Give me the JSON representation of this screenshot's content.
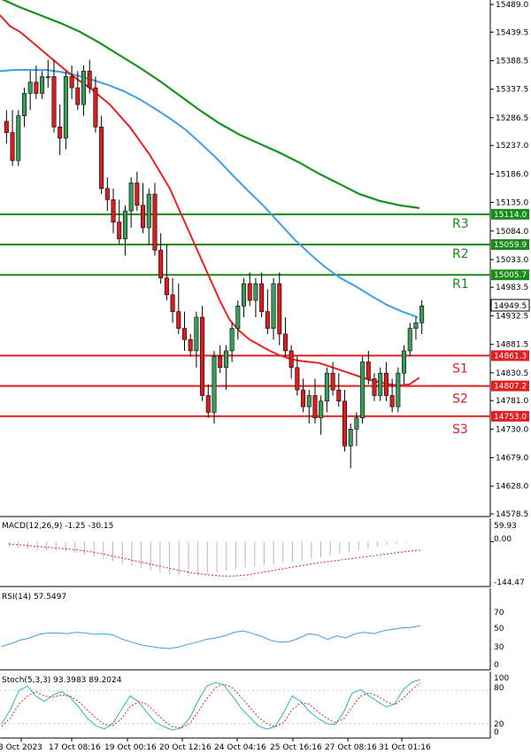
{
  "colors": {
    "bull": "#3a9c5a",
    "bear": "#d81e1e",
    "ma_fast": "#e8231f",
    "ma_mid": "#3aa0e8",
    "ma_slow": "#17921b",
    "resistance": "#1a8a1a",
    "support": "#e02020",
    "macd_hist": "#b8b8b8",
    "macd_signal": "#e02020",
    "rsi": "#3aa0e8",
    "stoch_k": "#2ab8b8",
    "stoch_d": "#e02020"
  },
  "chart_data": {
    "type": "candlestick",
    "price_axis": {
      "min": 14570,
      "max": 15500,
      "ticks": [
        "15489.0",
        "15439.5",
        "15388.5",
        "15337.5",
        "15286.5",
        "15237.0",
        "15186.0",
        "15135.0",
        "15084.0",
        "15033.0",
        "14983.5",
        "14932.5",
        "14881.5",
        "14830.5",
        "14781.0",
        "14730.0",
        "14679.0",
        "14628.0",
        "14578.5"
      ]
    },
    "last_price": "14949.5",
    "levels": [
      {
        "name": "R3",
        "value": "15114.0",
        "kind": "resistance"
      },
      {
        "name": "R2",
        "value": "15059.9",
        "kind": "resistance"
      },
      {
        "name": "R1",
        "value": "15005.7",
        "kind": "resistance"
      },
      {
        "name": "S1",
        "value": "14861.3",
        "kind": "support"
      },
      {
        "name": "S2",
        "value": "14807.2",
        "kind": "support"
      },
      {
        "name": "S3",
        "value": "14753.0",
        "kind": "support"
      }
    ],
    "candles": [
      [
        15280,
        15300,
        15240,
        15260
      ],
      [
        15260,
        15300,
        15200,
        15210
      ],
      [
        15210,
        15300,
        15200,
        15290
      ],
      [
        15290,
        15340,
        15270,
        15330
      ],
      [
        15330,
        15370,
        15300,
        15350
      ],
      [
        15350,
        15380,
        15320,
        15330
      ],
      [
        15330,
        15370,
        15320,
        15360
      ],
      [
        15360,
        15390,
        15340,
        15360
      ],
      [
        15360,
        15390,
        15260,
        15270
      ],
      [
        15270,
        15310,
        15220,
        15250
      ],
      [
        15250,
        15370,
        15230,
        15360
      ],
      [
        15360,
        15380,
        15320,
        15340
      ],
      [
        15340,
        15370,
        15300,
        15310
      ],
      [
        15310,
        15380,
        15290,
        15370
      ],
      [
        15370,
        15390,
        15330,
        15340
      ],
      [
        15340,
        15360,
        15260,
        15270
      ],
      [
        15270,
        15290,
        15150,
        15160
      ],
      [
        15160,
        15180,
        15120,
        15140
      ],
      [
        15140,
        15160,
        15080,
        15100
      ],
      [
        15100,
        15140,
        15060,
        15070
      ],
      [
        15070,
        15130,
        15040,
        15120
      ],
      [
        15120,
        15180,
        15090,
        15170
      ],
      [
        15170,
        15190,
        15120,
        15130
      ],
      [
        15130,
        15170,
        15080,
        15090
      ],
      [
        15090,
        15160,
        15060,
        15150
      ],
      [
        15150,
        15170,
        15040,
        15050
      ],
      [
        15050,
        15080,
        14990,
        15000
      ],
      [
        15000,
        15060,
        14960,
        14970
      ],
      [
        14970,
        15000,
        14920,
        14940
      ],
      [
        14940,
        14990,
        14900,
        14910
      ],
      [
        14910,
        14940,
        14870,
        14890
      ],
      [
        14890,
        14900,
        14860,
        14870
      ],
      [
        14870,
        14940,
        14840,
        14930
      ],
      [
        14930,
        14950,
        14780,
        14790
      ],
      [
        14790,
        14810,
        14750,
        14760
      ],
      [
        14760,
        14870,
        14740,
        14860
      ],
      [
        14860,
        14880,
        14830,
        14840
      ],
      [
        14840,
        14880,
        14800,
        14870
      ],
      [
        14870,
        14920,
        14850,
        14910
      ],
      [
        14910,
        14960,
        14890,
        14950
      ],
      [
        14950,
        15000,
        14930,
        14990
      ],
      [
        14990,
        15010,
        14950,
        14960
      ],
      [
        14960,
        15000,
        14930,
        14990
      ],
      [
        14990,
        15010,
        14930,
        14940
      ],
      [
        14940,
        14980,
        14900,
        14910
      ],
      [
        14910,
        15000,
        14890,
        14990
      ],
      [
        14990,
        15010,
        14880,
        14900
      ],
      [
        14900,
        14930,
        14860,
        14870
      ],
      [
        14870,
        14880,
        14820,
        14840
      ],
      [
        14840,
        14860,
        14790,
        14800
      ],
      [
        14800,
        14820,
        14760,
        14770
      ],
      [
        14770,
        14800,
        14740,
        14790
      ],
      [
        14790,
        14820,
        14740,
        14750
      ],
      [
        14750,
        14790,
        14720,
        14780
      ],
      [
        14780,
        14840,
        14760,
        14830
      ],
      [
        14830,
        14850,
        14790,
        14800
      ],
      [
        14800,
        14830,
        14770,
        14780
      ],
      [
        14780,
        14800,
        14690,
        14700
      ],
      [
        14700,
        14740,
        14660,
        14730
      ],
      [
        14730,
        14760,
        14700,
        14750
      ],
      [
        14750,
        14860,
        14740,
        14850
      ],
      [
        14850,
        14870,
        14810,
        14820
      ],
      [
        14820,
        14830,
        14780,
        14790
      ],
      [
        14790,
        14840,
        14780,
        14830
      ],
      [
        14830,
        14850,
        14780,
        14790
      ],
      [
        14790,
        14820,
        14760,
        14770
      ],
      [
        14770,
        14840,
        14760,
        14830
      ],
      [
        14830,
        14880,
        14810,
        14870
      ],
      [
        14870,
        14920,
        14860,
        14910
      ],
      [
        14910,
        14930,
        14890,
        14920
      ],
      [
        14920,
        14960,
        14900,
        14950
      ]
    ],
    "ma_fast": [
      15470,
      15450,
      15440,
      15425,
      15410,
      15395,
      15380,
      15365,
      15352,
      15340,
      15325,
      15310,
      15290,
      15270,
      15245,
      15220,
      15190,
      15160,
      15120,
      15080,
      15040,
      15000,
      14960,
      14925,
      14905,
      14890,
      14880,
      14870,
      14862,
      14856,
      14852,
      14850,
      14848,
      14842,
      14836,
      14830,
      14824,
      14818,
      14814,
      14810,
      14808,
      14810,
      14822
    ],
    "ma_mid": [
      15370,
      15372,
      15372,
      15372,
      15368,
      15362,
      15354,
      15345,
      15334,
      15320,
      15303,
      15285,
      15265,
      15240,
      15214,
      15185,
      15157,
      15130,
      15100,
      15070,
      15044,
      15020,
      15000,
      14985,
      14968,
      14952,
      14940,
      14930
    ],
    "ma_slow": [
      15500,
      15484,
      15470,
      15456,
      15440,
      15420,
      15398,
      15376,
      15352,
      15326,
      15300,
      15276,
      15256,
      15240,
      15224,
      15206,
      15186,
      15168,
      15150,
      15138,
      15130,
      15125
    ],
    "x_labels": [
      "3 Oct 2023",
      "17 Oct 08:16",
      "19 Oct 00:16",
      "20 Oct 12:16",
      "24 Oct 04:16",
      "25 Oct 16:16",
      "27 Oct 08:16",
      "31 Oct 01:16"
    ],
    "macd": {
      "label": "MACD(12,26,9) -1.25 -30.15",
      "axis": {
        "top": "59.93",
        "zero": "0.00",
        "bottom": "-144.47"
      },
      "histogram": [
        -18,
        -22,
        -26,
        -28,
        -30,
        -32,
        -35,
        -40,
        -46,
        -52,
        -60,
        -68,
        -76,
        -84,
        -92,
        -100,
        -108,
        -114,
        -118,
        -120,
        -118,
        -114,
        -108,
        -102,
        -96,
        -90,
        -86,
        -82,
        -78,
        -74,
        -70,
        -66,
        -60,
        -54,
        -48,
        -42,
        -36,
        -30,
        -24,
        -18,
        -12,
        -8,
        -4,
        -2
      ],
      "signal": [
        -8,
        -12,
        -16,
        -20,
        -24,
        -28,
        -34,
        -42,
        -52,
        -62,
        -72,
        -82,
        -92,
        -102,
        -110,
        -116,
        -120,
        -120,
        -116,
        -108,
        -100,
        -92,
        -84,
        -76,
        -70,
        -64,
        -58,
        -52,
        -46,
        -40,
        -34,
        -30
      ]
    },
    "rsi": {
      "label": "RSI(14) 57.5497",
      "axis": [
        "70",
        "50",
        "30",
        "0"
      ],
      "values": [
        28,
        32,
        37,
        40,
        45,
        47,
        47,
        46,
        48,
        47,
        45,
        46,
        44,
        38,
        34,
        30,
        28,
        26,
        25,
        27,
        31,
        34,
        38,
        40,
        43,
        48,
        50,
        46,
        42,
        36,
        34,
        35,
        40,
        46,
        44,
        38,
        43,
        40,
        46,
        48,
        46,
        50,
        52,
        54,
        55,
        57
      ]
    },
    "stoch": {
      "label": "Stoch(5,3,3) 93.3983 89.2024",
      "axis": [
        "100",
        "80",
        "20",
        "0"
      ],
      "k": [
        20,
        45,
        80,
        88,
        70,
        60,
        72,
        78,
        68,
        50,
        30,
        16,
        10,
        20,
        45,
        70,
        60,
        40,
        22,
        14,
        8,
        12,
        30,
        62,
        88,
        95,
        90,
        70,
        48,
        32,
        16,
        10,
        14,
        40,
        70,
        60,
        42,
        30,
        20,
        18,
        40,
        75,
        82,
        70,
        60,
        50,
        56,
        82,
        95,
        100
      ],
      "d": [
        15,
        30,
        55,
        70,
        78,
        70,
        68,
        72,
        70,
        60,
        45,
        30,
        18,
        16,
        28,
        50,
        60,
        55,
        40,
        25,
        14,
        12,
        20,
        42,
        65,
        85,
        92,
        85,
        68,
        50,
        32,
        20,
        14,
        22,
        45,
        58,
        55,
        42,
        30,
        22,
        28,
        50,
        70,
        76,
        70,
        60,
        54,
        66,
        82,
        94
      ]
    }
  }
}
